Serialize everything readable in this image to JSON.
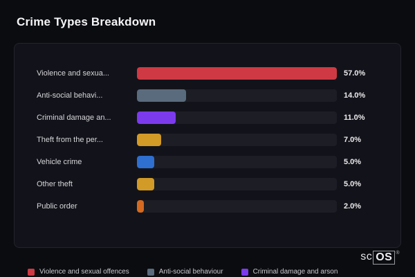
{
  "title": "Crime Types Breakdown",
  "chart_data": {
    "type": "bar",
    "orientation": "horizontal",
    "title": "Crime Types Breakdown",
    "categories": [
      "Violence and sexua...",
      "Anti-social behavi...",
      "Criminal damage an...",
      "Theft from the per...",
      "Vehicle crime",
      "Other theft",
      "Public order"
    ],
    "values": [
      57.0,
      14.0,
      11.0,
      7.0,
      5.0,
      5.0,
      2.0
    ],
    "value_labels": [
      "57.0%",
      "14.0%",
      "11.0%",
      "7.0%",
      "5.0%",
      "5.0%",
      "2.0%"
    ],
    "bar_colors": [
      "#cf3943",
      "#5a6b7d",
      "#7c3aed",
      "#d29a26",
      "#2e6fd0",
      "#d29a26",
      "#d4691f"
    ],
    "max_value": 57,
    "xlim": [
      0,
      57
    ],
    "grid": false,
    "legend_position": "bottom",
    "legend": [
      {
        "label": "Violence and sexual offences",
        "color": "#cf3943"
      },
      {
        "label": "Anti-social behaviour",
        "color": "#5a6b7d"
      },
      {
        "label": "Criminal damage and arson",
        "color": "#7c3aed"
      }
    ]
  },
  "branding": {
    "prefix": "sc",
    "box": "OS",
    "registered": "®"
  },
  "colors": {
    "page_bg": "#0b0c10",
    "panel_bg": "#12131a",
    "track_bg": "#1d1e25"
  }
}
